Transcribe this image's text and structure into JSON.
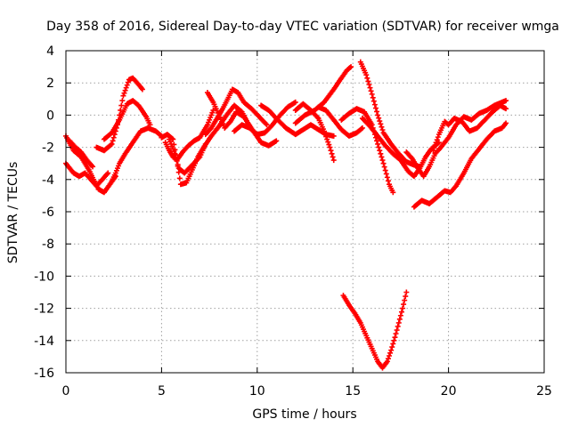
{
  "chart_data": {
    "type": "scatter",
    "title": "Day 358 of 2016, Sidereal Day-to-day VTEC variation (SDTVAR) for receiver wmga",
    "xlabel": "GPS time / hours",
    "ylabel": "SDTVAR / TECUs",
    "xlim": [
      0,
      25
    ],
    "ylim": [
      -16,
      4
    ],
    "xticks": [
      0,
      5,
      10,
      15,
      20,
      25
    ],
    "yticks": [
      -16,
      -14,
      -12,
      -10,
      -8,
      -6,
      -4,
      -2,
      0,
      2,
      4
    ],
    "grid": true,
    "legend": "none",
    "marker": "+",
    "series_color": "#ff0000",
    "series": [
      {
        "name": "track-1",
        "points": [
          [
            0,
            -1.3
          ],
          [
            0.4,
            -2.2
          ],
          [
            0.8,
            -2.6
          ],
          [
            1.2,
            -3.4
          ],
          [
            1.7,
            -4.6
          ],
          [
            2.0,
            -4.8
          ],
          [
            2.3,
            -4.3
          ],
          [
            2.6,
            -3.8
          ]
        ]
      },
      {
        "name": "track-2",
        "points": [
          [
            0,
            -3.0
          ],
          [
            0.4,
            -3.6
          ],
          [
            0.7,
            -3.8
          ],
          [
            1.0,
            -3.6
          ],
          [
            1.3,
            -4.0
          ],
          [
            1.6,
            -4.4
          ],
          [
            1.9,
            -4.0
          ],
          [
            2.2,
            -3.6
          ]
        ]
      },
      {
        "name": "track-3",
        "points": [
          [
            0.2,
            -1.6
          ],
          [
            0.5,
            -2.0
          ],
          [
            0.8,
            -2.3
          ],
          [
            1.1,
            -2.8
          ],
          [
            1.4,
            -3.2
          ]
        ]
      },
      {
        "name": "track-4",
        "points": [
          [
            1.6,
            -2.0
          ],
          [
            2.0,
            -2.2
          ],
          [
            2.4,
            -1.8
          ],
          [
            2.7,
            -0.6
          ],
          [
            3.0,
            1.2
          ],
          [
            3.3,
            2.2
          ],
          [
            3.5,
            2.3
          ],
          [
            3.8,
            1.9
          ],
          [
            4.0,
            1.6
          ]
        ]
      },
      {
        "name": "track-5",
        "points": [
          [
            2.0,
            -1.5
          ],
          [
            2.4,
            -1.1
          ],
          [
            2.8,
            -0.3
          ],
          [
            3.2,
            0.7
          ],
          [
            3.5,
            0.9
          ],
          [
            3.8,
            0.6
          ],
          [
            4.2,
            -0.1
          ],
          [
            4.4,
            -0.6
          ]
        ]
      },
      {
        "name": "track-6",
        "points": [
          [
            2.4,
            -4.1
          ],
          [
            2.6,
            -3.6
          ],
          [
            2.8,
            -3.0
          ],
          [
            3.1,
            -2.4
          ],
          [
            3.5,
            -1.7
          ],
          [
            3.9,
            -1.0
          ],
          [
            4.3,
            -0.8
          ],
          [
            4.7,
            -1.0
          ],
          [
            5.0,
            -1.3
          ]
        ]
      },
      {
        "name": "track-7",
        "points": [
          [
            5.0,
            -1.4
          ],
          [
            5.3,
            -1.2
          ],
          [
            5.6,
            -1.5
          ],
          [
            5.8,
            -2.8
          ],
          [
            6.0,
            -4.3
          ],
          [
            6.3,
            -4.2
          ],
          [
            6.6,
            -3.4
          ],
          [
            6.9,
            -2.6
          ],
          [
            7.2,
            -2.0
          ],
          [
            7.6,
            -1.3
          ],
          [
            8.0,
            -0.7
          ],
          [
            8.4,
            0.0
          ],
          [
            8.8,
            0.6
          ],
          [
            9.2,
            0.2
          ],
          [
            9.6,
            -0.7
          ]
        ]
      },
      {
        "name": "track-8",
        "points": [
          [
            5.4,
            -1.5
          ],
          [
            5.7,
            -2.4
          ],
          [
            5.9,
            -3.3
          ],
          [
            6.2,
            -3.6
          ],
          [
            6.6,
            -3.1
          ],
          [
            7.0,
            -2.6
          ],
          [
            7.3,
            -1.8
          ]
        ]
      },
      {
        "name": "track-9",
        "points": [
          [
            5.2,
            -1.7
          ],
          [
            5.4,
            -2.2
          ],
          [
            5.6,
            -2.6
          ],
          [
            5.8,
            -2.8
          ],
          [
            6.1,
            -2.3
          ],
          [
            6.4,
            -1.9
          ],
          [
            6.7,
            -1.6
          ],
          [
            7.0,
            -1.4
          ],
          [
            7.4,
            -0.6
          ],
          [
            7.7,
            0.3
          ]
        ]
      },
      {
        "name": "track-10",
        "points": [
          [
            7.3,
            -1.2
          ],
          [
            7.6,
            -0.8
          ],
          [
            7.9,
            -0.2
          ],
          [
            8.2,
            0.4
          ],
          [
            8.5,
            1.1
          ],
          [
            8.7,
            1.6
          ],
          [
            9.0,
            1.4
          ],
          [
            9.3,
            0.8
          ],
          [
            9.7,
            0.4
          ],
          [
            10.1,
            -0.1
          ],
          [
            10.5,
            -0.6
          ]
        ]
      },
      {
        "name": "track-11",
        "points": [
          [
            7.4,
            1.4
          ],
          [
            7.7,
            0.8
          ],
          [
            8.0,
            0.0
          ],
          [
            8.3,
            -0.8
          ],
          [
            8.6,
            -0.4
          ],
          [
            8.9,
            0.2
          ],
          [
            9.3,
            -0.1
          ],
          [
            9.8,
            -1.0
          ],
          [
            10.2,
            -1.7
          ],
          [
            10.6,
            -1.9
          ],
          [
            11.0,
            -1.6
          ]
        ]
      },
      {
        "name": "track-12",
        "points": [
          [
            8.8,
            -1.0
          ],
          [
            9.2,
            -0.6
          ],
          [
            9.6,
            -0.8
          ],
          [
            10.0,
            -1.2
          ],
          [
            10.4,
            -1.1
          ],
          [
            10.8,
            -0.6
          ],
          [
            11.2,
            0.0
          ],
          [
            11.6,
            0.5
          ],
          [
            12.0,
            0.8
          ]
        ]
      },
      {
        "name": "track-13",
        "points": [
          [
            10.2,
            0.6
          ],
          [
            10.6,
            0.3
          ],
          [
            11.0,
            -0.2
          ],
          [
            11.5,
            -0.8
          ],
          [
            12.0,
            -1.2
          ],
          [
            12.4,
            -0.9
          ],
          [
            12.8,
            -0.6
          ],
          [
            13.2,
            -0.9
          ],
          [
            13.6,
            -1.2
          ],
          [
            14.0,
            -1.3
          ]
        ]
      },
      {
        "name": "track-14",
        "points": [
          [
            12.0,
            0.3
          ],
          [
            12.4,
            0.7
          ],
          [
            12.8,
            0.3
          ],
          [
            13.2,
            -0.2
          ],
          [
            13.5,
            -1.0
          ],
          [
            13.8,
            -2.0
          ],
          [
            14.0,
            -2.8
          ]
        ]
      },
      {
        "name": "track-15",
        "points": [
          [
            12.0,
            -0.5
          ],
          [
            12.5,
            0.0
          ],
          [
            13.0,
            0.3
          ],
          [
            13.5,
            0.8
          ],
          [
            14.0,
            1.6
          ],
          [
            14.4,
            2.3
          ],
          [
            14.7,
            2.8
          ],
          [
            14.9,
            3.0
          ]
        ]
      },
      {
        "name": "track-16",
        "points": [
          [
            13.2,
            0.5
          ],
          [
            13.6,
            0.3
          ],
          [
            14.0,
            -0.3
          ],
          [
            14.4,
            -0.9
          ],
          [
            14.8,
            -1.3
          ],
          [
            15.2,
            -1.1
          ],
          [
            15.5,
            -0.8
          ]
        ]
      },
      {
        "name": "track-17",
        "points": [
          [
            14.4,
            -0.3
          ],
          [
            14.8,
            0.1
          ],
          [
            15.2,
            0.4
          ],
          [
            15.6,
            0.2
          ],
          [
            16.0,
            -0.6
          ],
          [
            16.3,
            -1.8
          ],
          [
            16.6,
            -3.0
          ],
          [
            16.9,
            -4.3
          ],
          [
            17.1,
            -4.8
          ]
        ]
      },
      {
        "name": "track-18",
        "points": [
          [
            15.4,
            3.3
          ],
          [
            15.7,
            2.5
          ],
          [
            16.0,
            1.3
          ],
          [
            16.3,
            0.0
          ],
          [
            16.6,
            -1.1
          ],
          [
            17.0,
            -1.8
          ],
          [
            17.4,
            -2.4
          ],
          [
            17.8,
            -2.9
          ],
          [
            18.2,
            -3.1
          ],
          [
            18.5,
            -3.2
          ]
        ]
      },
      {
        "name": "track-19",
        "points": [
          [
            15.5,
            -0.2
          ],
          [
            15.9,
            -0.7
          ],
          [
            16.3,
            -1.3
          ],
          [
            16.7,
            -1.9
          ],
          [
            17.1,
            -2.4
          ],
          [
            17.5,
            -2.8
          ],
          [
            17.9,
            -3.5
          ],
          [
            18.2,
            -3.8
          ],
          [
            18.5,
            -3.3
          ],
          [
            18.8,
            -2.6
          ],
          [
            19.1,
            -2.1
          ],
          [
            19.5,
            -1.7
          ]
        ]
      },
      {
        "name": "track-20",
        "points": [
          [
            17.8,
            -2.3
          ],
          [
            18.1,
            -2.7
          ],
          [
            18.4,
            -3.3
          ],
          [
            18.7,
            -3.8
          ],
          [
            19.0,
            -3.2
          ],
          [
            19.3,
            -2.4
          ],
          [
            19.6,
            -2.0
          ],
          [
            20.0,
            -1.4
          ],
          [
            20.4,
            -0.6
          ],
          [
            20.8,
            -0.1
          ],
          [
            21.2,
            -0.3
          ],
          [
            21.6,
            0.1
          ],
          [
            22.0,
            0.3
          ],
          [
            22.4,
            0.6
          ],
          [
            22.8,
            0.8
          ],
          [
            23.0,
            0.9
          ]
        ]
      },
      {
        "name": "track-21",
        "points": [
          [
            19.2,
            -2.2
          ],
          [
            19.5,
            -1.2
          ],
          [
            19.8,
            -0.4
          ],
          [
            20.0,
            -0.6
          ],
          [
            20.3,
            -0.2
          ],
          [
            20.7,
            -0.4
          ],
          [
            21.1,
            -1.0
          ],
          [
            21.5,
            -0.8
          ],
          [
            21.9,
            -0.3
          ],
          [
            22.3,
            0.2
          ],
          [
            22.7,
            0.6
          ],
          [
            23.0,
            0.4
          ]
        ]
      },
      {
        "name": "track-22",
        "points": [
          [
            18.2,
            -5.7
          ],
          [
            18.6,
            -5.3
          ],
          [
            19.0,
            -5.5
          ],
          [
            19.4,
            -5.1
          ],
          [
            19.8,
            -4.7
          ],
          [
            20.1,
            -4.8
          ],
          [
            20.4,
            -4.4
          ],
          [
            20.8,
            -3.6
          ],
          [
            21.2,
            -2.7
          ],
          [
            21.6,
            -2.1
          ],
          [
            22.0,
            -1.5
          ],
          [
            22.4,
            -1.0
          ],
          [
            22.8,
            -0.8
          ],
          [
            23.0,
            -0.5
          ]
        ]
      },
      {
        "name": "track-23",
        "points": [
          [
            14.5,
            -11.2
          ],
          [
            14.8,
            -11.8
          ],
          [
            15.1,
            -12.3
          ],
          [
            15.4,
            -12.9
          ],
          [
            15.7,
            -13.7
          ],
          [
            16.0,
            -14.5
          ],
          [
            16.3,
            -15.3
          ],
          [
            16.55,
            -15.7
          ],
          [
            16.8,
            -15.3
          ],
          [
            17.0,
            -14.6
          ],
          [
            17.2,
            -13.8
          ],
          [
            17.4,
            -12.9
          ],
          [
            17.6,
            -12.0
          ],
          [
            17.8,
            -11.0
          ]
        ]
      }
    ]
  }
}
